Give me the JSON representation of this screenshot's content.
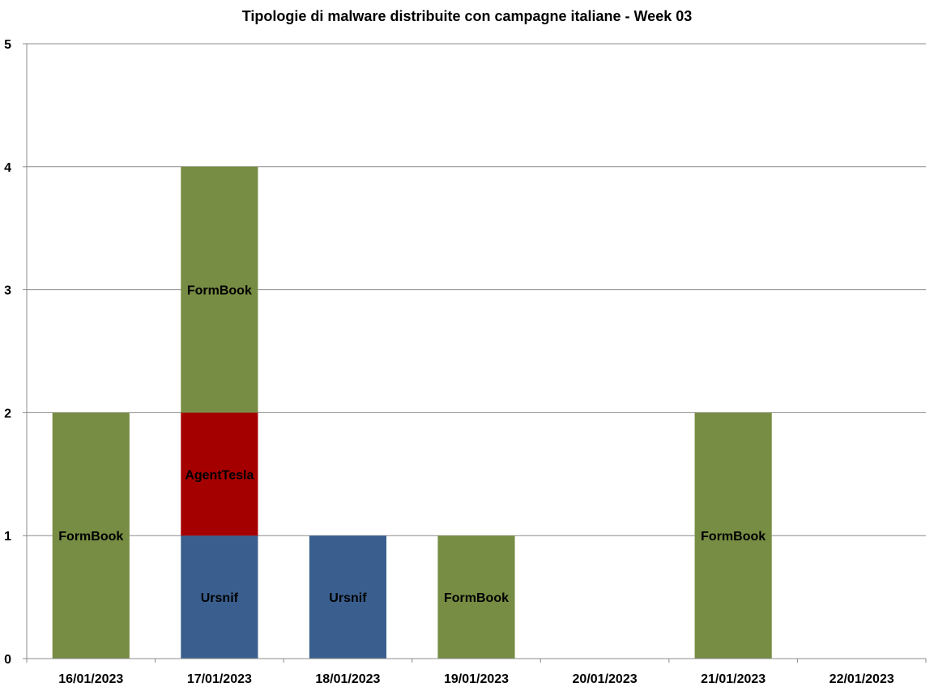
{
  "chart_data": {
    "type": "bar",
    "stacked": true,
    "title": "Tipologie di malware distribuite con campagne italiane - Week 03",
    "xlabel": "",
    "ylabel": "",
    "ylim": [
      0,
      5
    ],
    "yticks": [
      0,
      1,
      2,
      3,
      4,
      5
    ],
    "grid": true,
    "categories": [
      "16/01/2023",
      "17/01/2023",
      "18/01/2023",
      "19/01/2023",
      "20/01/2023",
      "21/01/2023",
      "22/01/2023"
    ],
    "series": [
      {
        "name": "Ursnif",
        "color": "#3A5F8E",
        "values": [
          0,
          1,
          1,
          0,
          0,
          0,
          0
        ]
      },
      {
        "name": "AgentTesla",
        "color": "#A50000",
        "values": [
          0,
          1,
          0,
          0,
          0,
          0,
          0
        ]
      },
      {
        "name": "FormBook",
        "color": "#778D43",
        "values": [
          2,
          2,
          0,
          1,
          0,
          2,
          0
        ]
      }
    ]
  }
}
